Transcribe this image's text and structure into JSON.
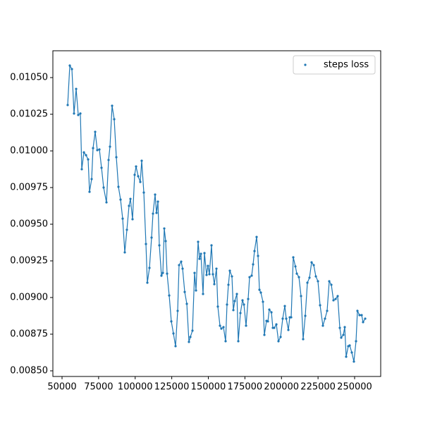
{
  "chart_data": {
    "type": "line",
    "markers": true,
    "legend": "upper right",
    "grid": false,
    "x": [
      53856,
      55301,
      56747,
      58193,
      59639,
      61084,
      62530,
      63494,
      64940,
      66386,
      67831,
      68795,
      70241,
      71205,
      72651,
      74096,
      75542,
      76988,
      78434,
      80361,
      81807,
      82771,
      84217,
      85662,
      87108,
      88554,
      90000,
      91445,
      92891,
      94337,
      95783,
      96747,
      98193,
      99639,
      100602,
      102048,
      103494,
      104458,
      105904,
      107349,
      108313,
      109759,
      111205,
      112169,
      113614,
      114578,
      115542,
      116506,
      117952,
      118916,
      119880,
      120843,
      121807,
      123253,
      124699,
      126145,
      127590,
      129036,
      130000,
      131446,
      132410,
      133855,
      135301,
      136747,
      137711,
      139157,
      140602,
      141566,
      143012,
      143976,
      144940,
      146386,
      147349,
      148795,
      149759,
      150723,
      152169,
      153133,
      154096,
      155542,
      156506,
      157952,
      158916,
      160361,
      161807,
      162771,
      163735,
      164699,
      166145,
      167108,
      168072,
      169518,
      170482,
      171928,
      173373,
      174337,
      175783,
      177229,
      178193,
      179639,
      180602,
      181566,
      183012,
      183976,
      184940,
      185904,
      187349,
      188313,
      189759,
      190723,
      191687,
      193133,
      194096,
      195060,
      196506,
      197952,
      199398,
      200843,
      202289,
      203253,
      204699,
      205663,
      206627,
      208072,
      209518,
      210482,
      211928,
      213373,
      214819,
      216265,
      217711,
      219157,
      220602,
      222048,
      223494,
      224940,
      226386,
      228313,
      229759,
      231205,
      232651,
      234096,
      235542,
      236988,
      238434,
      239880,
      240843,
      242289,
      243253,
      244217,
      245663,
      246627,
      248072,
      249518,
      250964,
      251928,
      253373,
      254819,
      255783,
      257229
    ],
    "series": [
      {
        "name": "steps loss",
        "color": "#1f77b4",
        "values": [
          0.010313,
          0.010582,
          0.010558,
          0.010255,
          0.010423,
          0.010245,
          0.010255,
          0.009875,
          0.00999,
          0.009971,
          0.009942,
          0.009721,
          0.009808,
          0.010019,
          0.01013,
          0.010005,
          0.01001,
          0.009885,
          0.00975,
          0.009649,
          0.009938,
          0.010029,
          0.010308,
          0.010216,
          0.009957,
          0.009755,
          0.009668,
          0.009538,
          0.009308,
          0.009462,
          0.009625,
          0.009673,
          0.009534,
          0.009837,
          0.009894,
          0.009827,
          0.009788,
          0.009933,
          0.009716,
          0.009365,
          0.009101,
          0.009202,
          0.009409,
          0.009572,
          0.009702,
          0.009577,
          0.009654,
          0.009356,
          0.009149,
          0.009168,
          0.009471,
          0.009385,
          0.009163,
          0.009014,
          0.008837,
          0.008755,
          0.008668,
          0.008909,
          0.009221,
          0.009245,
          0.009197,
          0.009038,
          0.008957,
          0.008697,
          0.008731,
          0.008774,
          0.009168,
          0.009048,
          0.00938,
          0.009264,
          0.009298,
          0.009024,
          0.009303,
          0.009154,
          0.009216,
          0.009159,
          0.009356,
          0.009159,
          0.009091,
          0.009197,
          0.008938,
          0.008808,
          0.008788,
          0.008798,
          0.008702,
          0.008952,
          0.009087,
          0.009183,
          0.009144,
          0.008914,
          0.008976,
          0.009024,
          0.008702,
          0.008894,
          0.008981,
          0.008952,
          0.008808,
          0.00899,
          0.009139,
          0.009149,
          0.009226,
          0.009317,
          0.009413,
          0.009284,
          0.009053,
          0.009034,
          0.008971,
          0.008745,
          0.008841,
          0.008837,
          0.008918,
          0.008899,
          0.008793,
          0.008793,
          0.008817,
          0.008702,
          0.008731,
          0.008856,
          0.008942,
          0.008856,
          0.008779,
          0.008865,
          0.008865,
          0.009274,
          0.009212,
          0.009163,
          0.009139,
          0.00901,
          0.008716,
          0.008875,
          0.009101,
          0.009135,
          0.00924,
          0.009221,
          0.009144,
          0.009111,
          0.008947,
          0.008808,
          0.008856,
          0.008909,
          0.009111,
          0.009087,
          0.008981,
          0.00899,
          0.00901,
          0.008793,
          0.008726,
          0.008745,
          0.008798,
          0.008596,
          0.008668,
          0.008673,
          0.008625,
          0.008563,
          0.008702,
          0.008909,
          0.00888,
          0.00888,
          0.008832,
          0.008856
        ]
      }
    ],
    "xlim": [
      43735,
      267831
    ],
    "xticks": [
      50000,
      75000,
      100000,
      125000,
      150000,
      175000,
      200000,
      225000,
      250000
    ],
    "ylim": [
      0.0084615,
      0.010683
    ],
    "yticks": [
      {
        "value": 0.0085,
        "label": "0.00850"
      },
      0.00875,
      {
        "value": 0.009,
        "label": "0.00900"
      },
      0.00925,
      {
        "value": 0.0095,
        "label": "0.00950"
      },
      0.00975,
      {
        "value": 0.01,
        "label": "0.01000"
      },
      0.01025,
      {
        "value": 0.0105,
        "label": "0.01050"
      }
    ]
  }
}
